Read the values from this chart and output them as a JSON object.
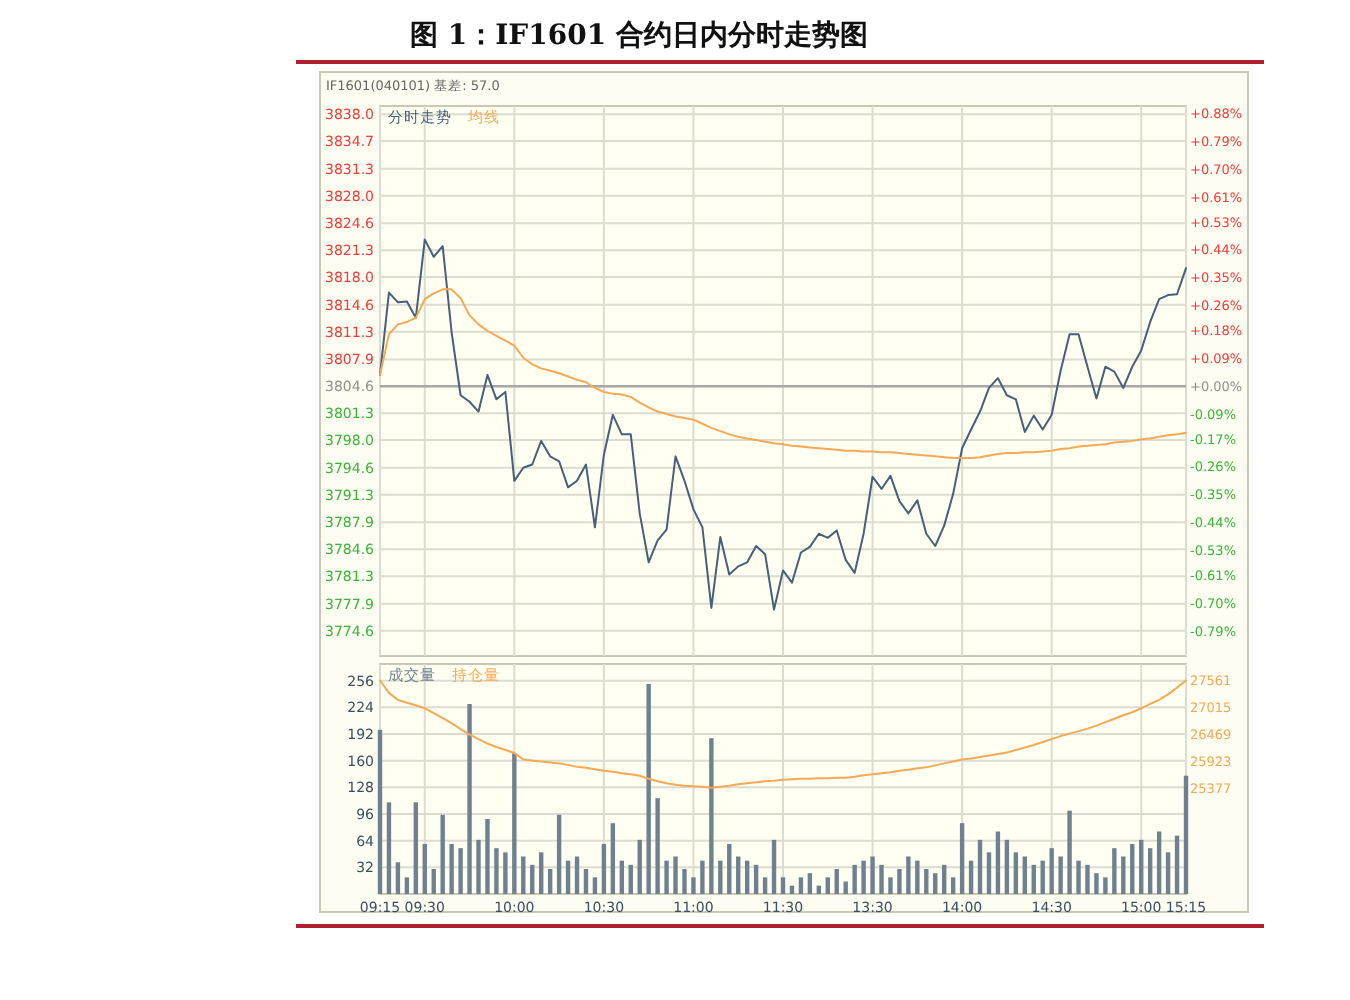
{
  "chart_data": [
    {
      "type": "line",
      "title": "图 1：IF1601 合约日内分时走势图",
      "annotations": [
        "IF1601(040101) 基差: 57.0"
      ],
      "categories": [
        null,
        null,
        null,
        null,
        null,
        null,
        null,
        null,
        null,
        null,
        null,
        null,
        null,
        null,
        null,
        null,
        null,
        null,
        null,
        null,
        null,
        null,
        null,
        null,
        null,
        null,
        null,
        null,
        null,
        null,
        null,
        null,
        null,
        null,
        null,
        null,
        null,
        null,
        null,
        null,
        null,
        null,
        null,
        null,
        null,
        null,
        null,
        null,
        null,
        null,
        null,
        null,
        null,
        null,
        null,
        null,
        null,
        null,
        null,
        null,
        null,
        null,
        null,
        null,
        null,
        null,
        null,
        null,
        null,
        null,
        null,
        null,
        null,
        null,
        null,
        null,
        null,
        null,
        null,
        null,
        null,
        null,
        null,
        null,
        null,
        null,
        null,
        null,
        null,
        null,
        null
      ],
      "ylim": [
        3771.5,
        3839
      ],
      "yticks": [
        {
          "value": 3774.6,
          "label": "3774.6"
        },
        {
          "value": 3777.9,
          "label": "3777.9"
        },
        {
          "value": 3781.3,
          "label": "3781.3"
        },
        {
          "value": 3784.6,
          "label": "3784.6"
        },
        {
          "value": 3787.9,
          "label": "3787.9"
        },
        {
          "value": 3791.3,
          "label": "3791.3"
        },
        {
          "value": 3794.6,
          "label": "3794.6"
        },
        {
          "value": 3798,
          "label": "3798.0"
        },
        {
          "value": 3801.3,
          "label": "3801.3"
        },
        {
          "value": 3804.6,
          "label": "3804.6"
        },
        {
          "value": 3807.9,
          "label": "3807.9"
        },
        {
          "value": 3811.3,
          "label": "3811.3"
        },
        {
          "value": 3814.6,
          "label": "3814.6"
        },
        {
          "value": 3818,
          "label": "3818.0"
        },
        {
          "value": 3821.3,
          "label": "3821.3"
        },
        {
          "value": 3824.6,
          "label": "3824.6"
        },
        {
          "value": 3828,
          "label": "3828.0"
        },
        {
          "value": 3831.3,
          "label": "3831.3"
        },
        {
          "value": 3834.7,
          "label": "3834.7"
        },
        {
          "value": 3838,
          "label": "3838.0"
        }
      ],
      "y2lim": [
        -0.87,
        0.904
      ],
      "y2ticks": [
        {
          "value": -0.79,
          "label": "-0.79%"
        },
        {
          "value": -0.7,
          "label": "-0.70%"
        },
        {
          "value": -0.61,
          "label": "-0.61%"
        },
        {
          "value": -0.53,
          "label": "-0.53%"
        },
        {
          "value": -0.44,
          "label": "-0.44%"
        },
        {
          "value": -0.35,
          "label": "-0.35%"
        },
        {
          "value": -0.26,
          "label": "-0.26%"
        },
        {
          "value": -0.17,
          "label": "-0.17%"
        },
        {
          "value": -0.09,
          "label": "-0.09%"
        },
        {
          "value": 0,
          "label": "+0.00%"
        },
        {
          "value": 0.09,
          "label": "+0.09%"
        },
        {
          "value": 0.18,
          "label": "+0.18%"
        },
        {
          "value": 0.26,
          "label": "+0.26%"
        },
        {
          "value": 0.35,
          "label": "+0.35%"
        },
        {
          "value": 0.44,
          "label": "+0.44%"
        },
        {
          "value": 0.53,
          "label": "+0.53%"
        },
        {
          "value": 0.61,
          "label": "+0.61%"
        },
        {
          "value": 0.7,
          "label": "+0.70%"
        },
        {
          "value": 0.79,
          "label": "+0.79%"
        },
        {
          "value": 0.88,
          "label": "+0.88%"
        }
      ],
      "ref_lines": [
        {
          "axis": "y",
          "value": 3804.6,
          "color": "#a8a8a8"
        }
      ],
      "grid": true,
      "legend": "top left",
      "tick_labels": "y",
      "series": [
        {
          "name": "分时走势",
          "color": "#46607a",
          "values": [
            3806,
            3816.1,
            3814.9,
            3815,
            3813,
            3822.6,
            3820.5,
            3821.8,
            3811.2,
            3803.5,
            3802.7,
            3801.5,
            3806,
            3803,
            3803.9,
            3793,
            3794.6,
            3795,
            3797.9,
            3796,
            3795.4,
            3792.2,
            3793,
            3795,
            3787.3,
            3796.2,
            3801.1,
            3798.7,
            3798.7,
            3789,
            3783,
            3785.7,
            3787,
            3796,
            3793,
            3789.5,
            3787.3,
            3777.4,
            3786.1,
            3781.5,
            3782.5,
            3783,
            3785,
            3784,
            3777.2,
            3782,
            3780.5,
            3784.2,
            3784.9,
            3786.5,
            3786,
            3786.9,
            3783.3,
            3781.7,
            3786.5,
            3793.5,
            3792,
            3793.6,
            3790.5,
            3789,
            3790.6,
            3786.5,
            3785,
            3787.5,
            3791.4,
            3797,
            3799.3,
            3801.5,
            3804.4,
            3805.6,
            3803.5,
            3803,
            3799,
            3801,
            3799.3,
            3801.1,
            3806.5,
            3811,
            3811,
            3807,
            3803.1,
            3807,
            3806.4,
            3804.4,
            3807,
            3809,
            3812.5,
            3815.3,
            3815.8,
            3815.9,
            3819.1
          ]
        },
        {
          "name": "均线",
          "color": "#f7a954",
          "values": [
            3806,
            3811,
            3812.2,
            3812.5,
            3813,
            3815.3,
            3816,
            3816.5,
            3816.5,
            3815.4,
            3813.3,
            3812.2,
            3811.4,
            3810.8,
            3810.2,
            3809.6,
            3808.1,
            3807.3,
            3806.8,
            3806.5,
            3806.2,
            3805.8,
            3805.4,
            3805.1,
            3804.4,
            3803.9,
            3803.7,
            3803.6,
            3803.3,
            3802.6,
            3802,
            3801.5,
            3801.2,
            3800.9,
            3800.7,
            3800.5,
            3800,
            3799.5,
            3799.1,
            3798.7,
            3798.4,
            3798.2,
            3798,
            3797.8,
            3797.6,
            3797.5,
            3797.3,
            3797.2,
            3797.1,
            3797,
            3796.9,
            3796.8,
            3796.7,
            3796.7,
            3796.6,
            3796.6,
            3796.5,
            3796.5,
            3796.4,
            3796.3,
            3796.2,
            3796.1,
            3796,
            3795.9,
            3795.8,
            3795.8,
            3795.8,
            3795.9,
            3796.1,
            3796.3,
            3796.4,
            3796.4,
            3796.5,
            3796.5,
            3796.6,
            3796.7,
            3796.9,
            3797,
            3797.2,
            3797.3,
            3797.4,
            3797.5,
            3797.7,
            3797.8,
            3797.9,
            3798.1,
            3798.2,
            3798.4,
            3798.6,
            3798.7,
            3798.9
          ]
        }
      ]
    },
    {
      "type": "bar",
      "categories": [
        "09:15",
        null,
        null,
        null,
        null,
        "09:30",
        null,
        null,
        null,
        null,
        null,
        null,
        null,
        null,
        null,
        "10:00",
        null,
        null,
        null,
        null,
        null,
        null,
        null,
        null,
        null,
        "10:30",
        null,
        null,
        null,
        null,
        null,
        null,
        null,
        null,
        null,
        "11:00",
        null,
        null,
        null,
        null,
        null,
        null,
        null,
        null,
        null,
        "11:30",
        null,
        null,
        null,
        null,
        null,
        null,
        null,
        null,
        null,
        "13:30",
        null,
        null,
        null,
        null,
        null,
        null,
        null,
        null,
        null,
        "14:00",
        null,
        null,
        null,
        null,
        null,
        null,
        null,
        null,
        null,
        "14:30",
        null,
        null,
        null,
        null,
        null,
        null,
        null,
        null,
        null,
        "15:00",
        null,
        null,
        null,
        null,
        "15:15"
      ],
      "ylim": [
        0,
        276
      ],
      "yticks": [
        32,
        64,
        96,
        128,
        160,
        192,
        224,
        256
      ],
      "y2lim": [
        23259,
        27892
      ],
      "y2ticks": [
        25377,
        25923,
        26469,
        27015,
        27561
      ],
      "grid": true,
      "legend": "top left",
      "series": [
        {
          "name": "成交量",
          "color": "#6f8190",
          "values": [
            197,
            110,
            38,
            20,
            110,
            60,
            30,
            95,
            60,
            55,
            228,
            65,
            90,
            55,
            50,
            169,
            45,
            35,
            50,
            30,
            95,
            40,
            45,
            30,
            20,
            60,
            85,
            40,
            35,
            65,
            252,
            115,
            40,
            45,
            30,
            20,
            40,
            187,
            40,
            60,
            45,
            40,
            35,
            20,
            65,
            20,
            10,
            20,
            25,
            10,
            20,
            30,
            15,
            35,
            40,
            45,
            35,
            20,
            30,
            45,
            40,
            30,
            25,
            35,
            20,
            85,
            40,
            65,
            50,
            75,
            65,
            50,
            45,
            35,
            40,
            55,
            45,
            100,
            40,
            35,
            25,
            20,
            55,
            45,
            60,
            65,
            55,
            75,
            50,
            70,
            142
          ]
        },
        {
          "name": "持仓量",
          "type": "line",
          "axis": "y2",
          "color": "#f7a954",
          "values": [
            27560,
            27310,
            27170,
            27110,
            27060,
            27000,
            26900,
            26800,
            26700,
            26580,
            26470,
            26380,
            26290,
            26220,
            26160,
            26100,
            25970,
            25950,
            25930,
            25910,
            25890,
            25860,
            25820,
            25800,
            25770,
            25740,
            25720,
            25690,
            25670,
            25640,
            25580,
            25530,
            25490,
            25460,
            25440,
            25430,
            25420,
            25400,
            25420,
            25440,
            25470,
            25490,
            25510,
            25530,
            25540,
            25560,
            25570,
            25580,
            25580,
            25590,
            25590,
            25600,
            25600,
            25620,
            25650,
            25670,
            25690,
            25710,
            25740,
            25760,
            25790,
            25810,
            25850,
            25890,
            25930,
            25970,
            25990,
            26020,
            26050,
            26080,
            26110,
            26160,
            26210,
            26260,
            26320,
            26380,
            26440,
            26490,
            26540,
            26590,
            26650,
            26720,
            26790,
            26860,
            26920,
            27000,
            27090,
            27170,
            27280,
            27420,
            27560
          ]
        }
      ]
    }
  ]
}
